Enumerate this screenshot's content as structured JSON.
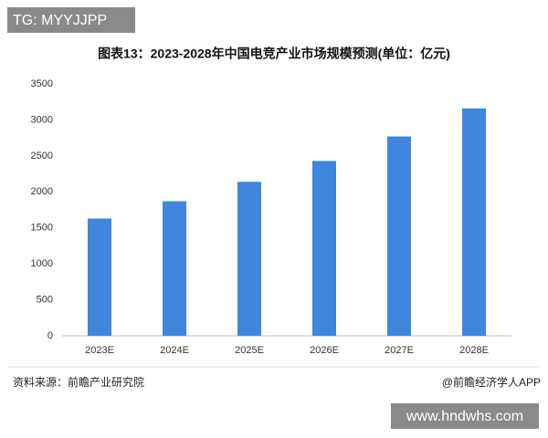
{
  "overlay_top": "TG: MYYJJPP",
  "overlay_bottom": "www.hndwhs.com",
  "chart_data": {
    "type": "bar",
    "title": "图表13：2023-2028年中国电竞产业市场规模预测(单位：亿元)",
    "categories": [
      "2023E",
      "2024E",
      "2025E",
      "2026E",
      "2027E",
      "2028E"
    ],
    "values": [
      1630,
      1870,
      2140,
      2430,
      2770,
      3160
    ],
    "color": "#3f86dc",
    "ylim": [
      0,
      3500
    ],
    "yticks": [
      0,
      500,
      1000,
      1500,
      2000,
      2500,
      3000,
      3500
    ],
    "grid": false,
    "source": "资料来源：前瞻产业研究院",
    "credit": "@前瞻经济学人APP"
  }
}
